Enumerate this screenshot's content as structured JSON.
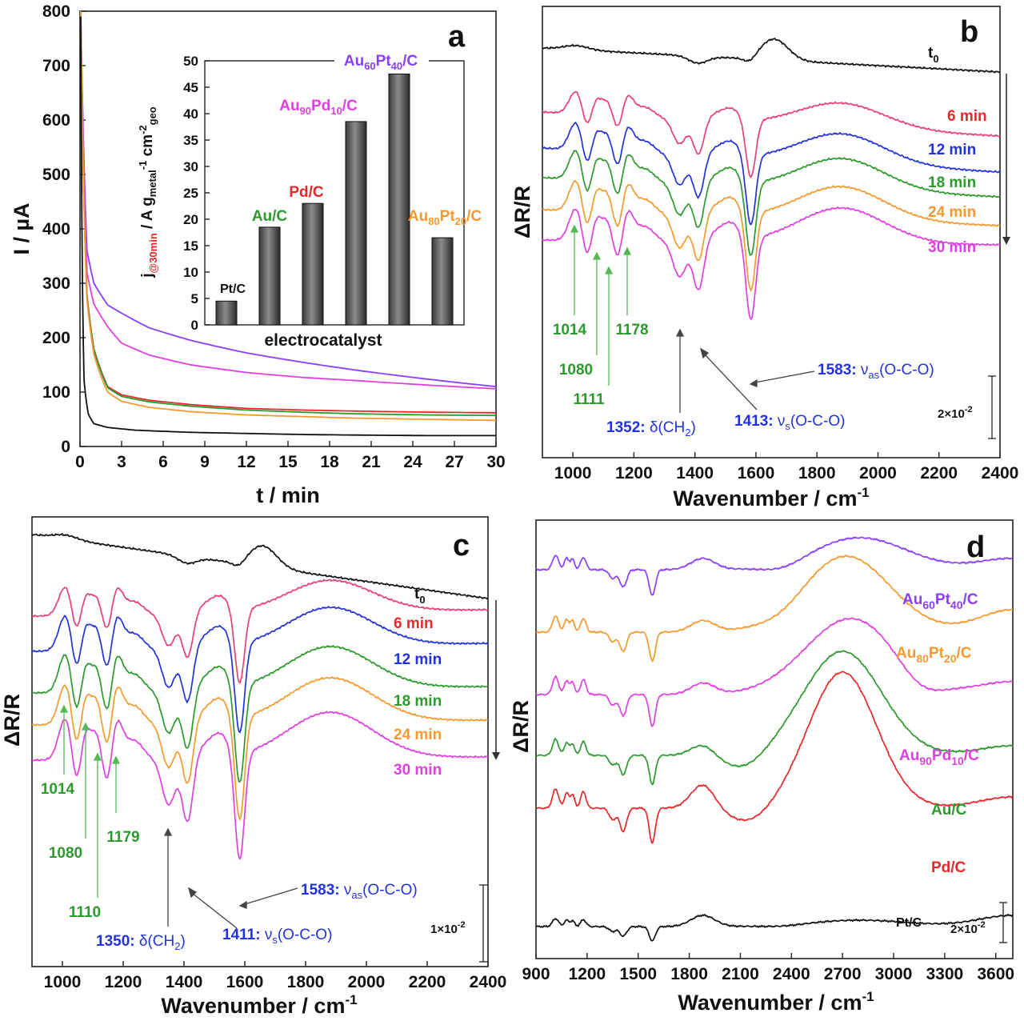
{
  "chart_data": [
    {
      "panel": "a",
      "type": "line",
      "xlabel": "t / min",
      "ylabel": "I / µA",
      "xlim": [
        0,
        30
      ],
      "ylim": [
        0,
        800
      ],
      "xticks": [
        "0",
        "3",
        "6",
        "9",
        "12",
        "15",
        "18",
        "21",
        "24",
        "27",
        "30"
      ],
      "yticks": [
        "0",
        "100",
        "200",
        "300",
        "400",
        "500",
        "600",
        "700",
        "800"
      ],
      "series": [
        {
          "name": "Au60Pt40/C",
          "color": "#8a3ffc",
          "t": [
            0.05,
            0.5,
            1,
            2,
            3,
            5,
            8,
            12,
            16,
            20,
            25,
            30
          ],
          "i": [
            800,
            360,
            300,
            260,
            245,
            218,
            195,
            172,
            155,
            140,
            124,
            110
          ]
        },
        {
          "name": "Au90Pd10/C",
          "color": "#e040e0",
          "t": [
            0.05,
            0.5,
            1,
            2,
            3,
            5,
            8,
            12,
            16,
            20,
            25,
            30
          ],
          "i": [
            800,
            320,
            262,
            220,
            190,
            168,
            150,
            136,
            127,
            121,
            113,
            106
          ]
        },
        {
          "name": "Pd/C",
          "color": "#e8282a",
          "t": [
            0.05,
            0.5,
            1,
            2,
            3,
            5,
            8,
            12,
            16,
            20,
            25,
            30
          ],
          "i": [
            780,
            280,
            180,
            110,
            95,
            85,
            77,
            70,
            67,
            65,
            63,
            62
          ]
        },
        {
          "name": "Au/C",
          "color": "#2c9a2c",
          "t": [
            0.05,
            0.5,
            1,
            2,
            3,
            5,
            8,
            12,
            16,
            20,
            25,
            30
          ],
          "i": [
            790,
            275,
            178,
            108,
            92,
            82,
            74,
            67,
            63,
            60,
            58,
            57
          ]
        },
        {
          "name": "Au80Pt20/C",
          "color": "#f49a30",
          "t": [
            0.05,
            0.5,
            1,
            2,
            3,
            5,
            8,
            12,
            16,
            20,
            25,
            30
          ],
          "i": [
            800,
            270,
            170,
            100,
            83,
            72,
            64,
            58,
            55,
            52,
            50,
            48
          ]
        },
        {
          "name": "Pt/C",
          "color": "#111111",
          "t": [
            0.05,
            0.3,
            0.6,
            1,
            2,
            4,
            8,
            12,
            16,
            20,
            25,
            30
          ],
          "i": [
            790,
            120,
            60,
            42,
            35,
            30,
            26,
            24,
            22,
            21,
            20,
            20
          ]
        }
      ],
      "inset": {
        "type": "bar",
        "xlabel": "electrocatalyst",
        "ylabel": "j@30min / A gmetal-1 cmgeo-2",
        "ylim": [
          0,
          50
        ],
        "yticks": [
          "0",
          "5",
          "10",
          "15",
          "20",
          "25",
          "30",
          "35",
          "40",
          "45",
          "50"
        ],
        "categories": [
          "Pt/C",
          "Au/C",
          "Pd/C",
          "Au90Pd10/C",
          "Au60Pt40/C",
          "Au80Pt20/C"
        ],
        "values": [
          4.5,
          18.5,
          23,
          38.5,
          47.5,
          16.5
        ],
        "label_colors": [
          "#111111",
          "#2c9a2c",
          "#e8282a",
          "#e040e0",
          "#8a3ffc",
          "#f49a30"
        ]
      }
    },
    {
      "panel": "b",
      "type": "line",
      "xlabel": "Wavenumber / cm-1",
      "ylabel": "ΔR/R",
      "xlim": [
        900,
        2400
      ],
      "xticks": [
        "1000",
        "1200",
        "1400",
        "1600",
        "1800",
        "2000",
        "2200",
        "2400"
      ],
      "scale_bar": "2×10-2",
      "series_labels": [
        "t0",
        "6 min",
        "12 min",
        "18 min",
        "24 min",
        "30 min"
      ],
      "series_colors": [
        "#111111",
        "#e8407a",
        "#2233dd",
        "#2c9a2c",
        "#f49a30",
        "#e040e0"
      ],
      "peak_labels": [
        "1014",
        "1080",
        "1111",
        "1178"
      ],
      "band_labels": {
        "b1352": "1352: δ(CH2)",
        "b1413": "1413: νs(O-C-O)",
        "b1583": "1583: νas(O-C-O)"
      }
    },
    {
      "panel": "c",
      "type": "line",
      "xlabel": "Wavenumber / cm-1",
      "ylabel": "ΔR/R",
      "xlim": [
        900,
        2400
      ],
      "xticks": [
        "1000",
        "1200",
        "1400",
        "1600",
        "1800",
        "2000",
        "2200",
        "2400"
      ],
      "scale_bar": "1×10-2",
      "series_labels": [
        "t0",
        "6 min",
        "12 min",
        "18 min",
        "24 min",
        "30 min"
      ],
      "series_colors": [
        "#111111",
        "#e8407a",
        "#2233dd",
        "#2c9a2c",
        "#f49a30",
        "#e040e0"
      ],
      "peak_labels": [
        "1014",
        "1080",
        "1110",
        "1179"
      ],
      "band_labels": {
        "b1350": "1350: δ(CH2)",
        "b1411": "1411: νs(O-C-O)",
        "b1583": "1583: νas(O-C-O)"
      }
    },
    {
      "panel": "d",
      "type": "line",
      "xlabel": "Wavenumber / cm-1",
      "ylabel": "ΔR/R",
      "xlim": [
        900,
        3700
      ],
      "xticks": [
        "900",
        "1200",
        "1500",
        "1800",
        "2100",
        "2400",
        "2700",
        "3000",
        "3300",
        "3600"
      ],
      "scale_bar": "2×10-2",
      "series_labels": [
        "Au60Pt40/C",
        "Au80Pt20/C",
        "Au90Pd10/C",
        "Au/C",
        "Pd/C",
        "Pt/C"
      ],
      "series_colors": [
        "#8a3ffc",
        "#f49a30",
        "#e040e0",
        "#2c9a2c",
        "#e8282a",
        "#111111"
      ]
    }
  ],
  "labels": {
    "a": {
      "letter": "a",
      "xlabel": "t / min",
      "ylabel": "I / µA",
      "inset_x": "electrocatalyst",
      "inset_y": {
        "j": "j",
        "sub": "@30min",
        "mid": " / A g",
        "sub2": "metal",
        "sup": "-1",
        "cm": " cm",
        "sup2": "-2",
        "sub3": "geo"
      },
      "bars": {
        "pt": "Pt/C",
        "au": "Au/C",
        "pd": "Pd/C",
        "aupd_base": "Au",
        "aupd_s1": "90",
        "aupd_m": "Pd",
        "aupd_s2": "10",
        "aupd_end": "/C",
        "aupt60_base": "Au",
        "aupt60_s1": "60",
        "aupt60_m": "Pt",
        "aupt60_s2": "40",
        "aupt60_end": "/C",
        "aupt80_base": "Au",
        "aupt80_s1": "80",
        "aupt80_m": "Pt",
        "aupt80_s2": "20",
        "aupt80_end": "/C"
      }
    },
    "b": {
      "letter": "b",
      "xlabel": "Wavenumber / cm",
      "xsup": "-1",
      "ylabel": "ΔR/R",
      "t0": "t",
      "t0sub": "0",
      "m6": "6 min",
      "m12": "12 min",
      "m18": "18 min",
      "m24": "24 min",
      "m30": "30 min",
      "p1": "1014",
      "p2": "1080",
      "p3": "1111",
      "p4": "1178",
      "b1num": "1352: ",
      "b1d": "δ(CH",
      "b1sub": "2",
      "b1end": ")",
      "b2num": "1413: ",
      "b2n": "ν",
      "b2sub": "s",
      "b2end": "(O-C-O)",
      "b3num": "1583: ",
      "b3n": "ν",
      "b3sub": "as",
      "b3end": "(O-C-O)",
      "scale": "2×10",
      "scale_sup": "-2"
    },
    "c": {
      "letter": "c",
      "xlabel": "Wavenumber / cm",
      "xsup": "-1",
      "ylabel": "ΔR/R",
      "t0": "t",
      "t0sub": "0",
      "m6": "6 min",
      "m12": "12 min",
      "m18": "18 min",
      "m24": "24 min",
      "m30": "30 min",
      "p1": "1014",
      "p2": "1080",
      "p3": "1110",
      "p4": "1179",
      "b1num": "1350: ",
      "b1d": "δ(CH",
      "b1sub": "2",
      "b1end": ")",
      "b2num": "1411: ",
      "b2n": "ν",
      "b2sub": "s",
      "b2end": "(O-C-O)",
      "b3num": "1583: ",
      "b3n": "ν",
      "b3sub": "as",
      "b3end": "(O-C-O)",
      "scale": "1×10",
      "scale_sup": "-2"
    },
    "d": {
      "letter": "d",
      "xlabel": "Wavenumber / cm",
      "xsup": "-1",
      "ylabel": "ΔR/R",
      "l1": "Au",
      "l1s": "60",
      "l1m": "Pt",
      "l1s2": "40",
      "l1e": "/C",
      "l2": "Au",
      "l2s": "80",
      "l2m": "Pt",
      "l2s2": "20",
      "l2e": "/C",
      "l3": "Au",
      "l3s": "90",
      "l3m": "Pd",
      "l3s2": "10",
      "l3e": "/C",
      "l4": "Au/C",
      "l5": "Pd/C",
      "l6": "Pt/C",
      "scale": "2×10",
      "scale_sup": "-2"
    }
  }
}
